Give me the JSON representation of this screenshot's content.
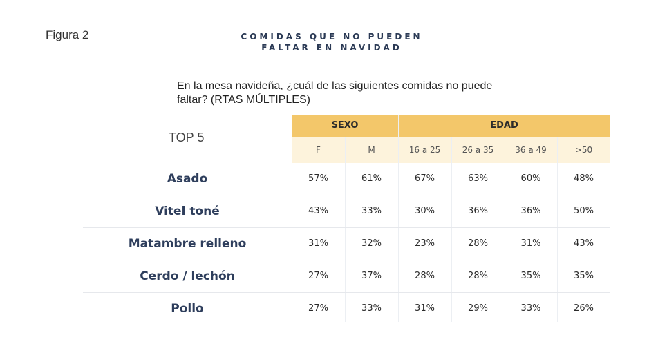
{
  "figure_label": "Figura 2",
  "title": {
    "line1": "COMIDAS QUE NO PUEDEN",
    "line2": "FALTAR EN NAVIDAD"
  },
  "question": "En la mesa navideña, ¿cuál de las siguientes comidas no puede faltar? (RTAS MÚLTIPLES)",
  "table": {
    "corner_label": "TOP 5",
    "groups": [
      "SEXO",
      "EDAD"
    ],
    "columns": [
      "F",
      "M",
      "16 a 25",
      "26 a 35",
      "36 a 49",
      ">50"
    ],
    "rows": [
      {
        "label": "Asado",
        "values": [
          "57%",
          "61%",
          "67%",
          "63%",
          "60%",
          "48%"
        ]
      },
      {
        "label": "Vitel toné",
        "values": [
          "43%",
          "33%",
          "30%",
          "36%",
          "36%",
          "50%"
        ]
      },
      {
        "label": "Matambre relleno",
        "values": [
          "31%",
          "32%",
          "23%",
          "28%",
          "31%",
          "43%"
        ]
      },
      {
        "label": "Cerdo / lechón",
        "values": [
          "27%",
          "37%",
          "28%",
          "28%",
          "35%",
          "35%"
        ]
      },
      {
        "label": "Pollo",
        "values": [
          "27%",
          "33%",
          "31%",
          "29%",
          "33%",
          "26%"
        ]
      }
    ]
  },
  "colors": {
    "header_gold": "#f3c76a",
    "subheader_cream": "#fdf3dc",
    "label_navy": "#2e3e5c"
  }
}
